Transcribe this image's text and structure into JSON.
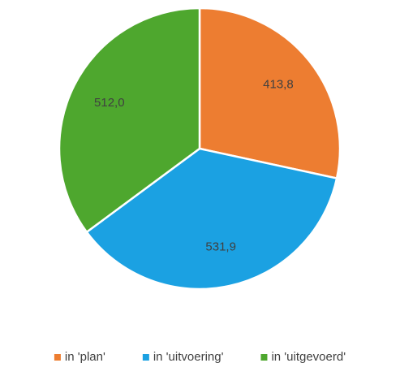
{
  "chart_data": {
    "type": "pie",
    "categories": [
      "in 'plan'",
      "in 'uitvoering'",
      "in 'uitgevoerd'"
    ],
    "values": [
      413.8,
      531.9,
      512.0
    ],
    "value_labels": [
      "413,8",
      "531,9",
      "512,0"
    ],
    "colors": [
      "#ed7d31",
      "#1ba1e2",
      "#4ea72e"
    ],
    "legend": "bottom"
  }
}
